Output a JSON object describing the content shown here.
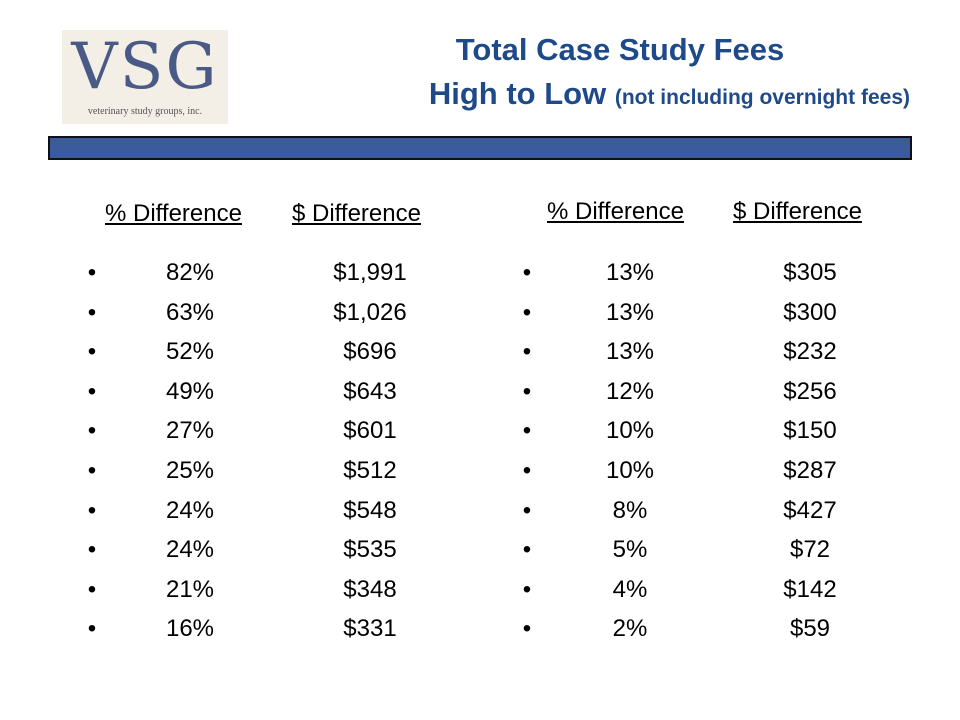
{
  "logo": {
    "mark": "VSG",
    "subtitle": "veterinary study groups, inc."
  },
  "title": {
    "line1": "Total Case Study Fees",
    "line2": "High to Low",
    "note": "(not including overnight fees)"
  },
  "left_table": {
    "pct_header": "% Difference",
    "amt_header": "$ Difference",
    "rows": [
      {
        "pct": "82%",
        "amt": "$1,991"
      },
      {
        "pct": "63%",
        "amt": "$1,026"
      },
      {
        "pct": "52%",
        "amt": "$696"
      },
      {
        "pct": "49%",
        "amt": "$643"
      },
      {
        "pct": "27%",
        "amt": "$601"
      },
      {
        "pct": "25%",
        "amt": "$512"
      },
      {
        "pct": "24%",
        "amt": "$548"
      },
      {
        "pct": "24%",
        "amt": "$535"
      },
      {
        "pct": "21%",
        "amt": "$348"
      },
      {
        "pct": "16%",
        "amt": "$331"
      }
    ]
  },
  "right_table": {
    "pct_header": "% Difference",
    "amt_header": "$ Difference",
    "rows": [
      {
        "pct": "13%",
        "amt": "$305"
      },
      {
        "pct": "13%",
        "amt": "$300"
      },
      {
        "pct": "13%",
        "amt": "$232"
      },
      {
        "pct": "12%",
        "amt": "$256"
      },
      {
        "pct": "10%",
        "amt": "$150"
      },
      {
        "pct": "10%",
        "amt": "$287"
      },
      {
        "pct": "8%",
        "amt": "$427"
      },
      {
        "pct": "5%",
        "amt": "$72"
      },
      {
        "pct": "4%",
        "amt": "$142"
      },
      {
        "pct": "2%",
        "amt": "$59"
      }
    ]
  },
  "bullet_glyph": "•",
  "colors": {
    "title": "#1f4a8a",
    "bar": "#3a5c9c",
    "logo": "#4a5a86"
  }
}
